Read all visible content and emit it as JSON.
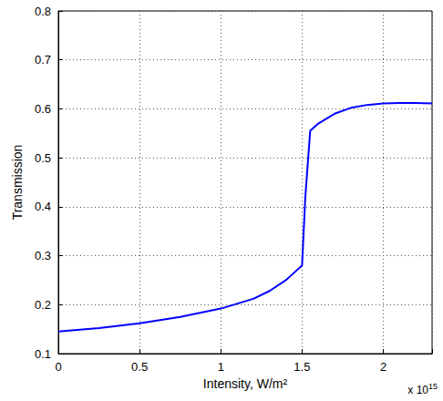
{
  "chart_data": {
    "type": "line",
    "x_label": "Intensity, W/m²",
    "y_label": "Transmission",
    "annotations": [
      {
        "text": "x 10",
        "superscript": "15"
      }
    ],
    "x": [
      0,
      0.25,
      0.5,
      0.75,
      1.0,
      1.2,
      1.3,
      1.4,
      1.45,
      1.5,
      1.52,
      1.55,
      1.6,
      1.7,
      1.8,
      1.9,
      2.0,
      2.1,
      2.2,
      2.3
    ],
    "series": [
      {
        "name": "Transmission",
        "color": "#0000ff",
        "values": [
          0.145,
          0.152,
          0.162,
          0.175,
          0.192,
          0.212,
          0.228,
          0.25,
          0.265,
          0.28,
          0.42,
          0.555,
          0.57,
          0.59,
          0.602,
          0.608,
          0.611,
          0.612,
          0.612,
          0.611
        ]
      }
    ],
    "xlim": [
      0,
      2.3
    ],
    "xticks": [
      0,
      0.5,
      1,
      1.5,
      2
    ],
    "ylim": [
      0.1,
      0.8
    ],
    "yticks": [
      0.1,
      0.2,
      0.3,
      0.4,
      0.5,
      0.6,
      0.7,
      0.8
    ],
    "grid": true
  }
}
